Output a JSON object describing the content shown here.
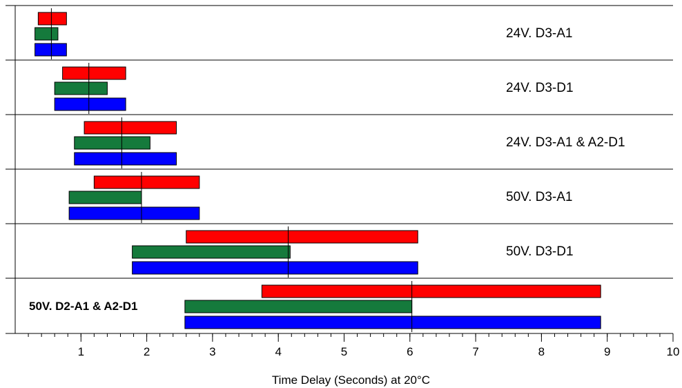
{
  "chart_data": {
    "type": "bar",
    "subtype": "floating-range",
    "xlabel": "Time Delay (Seconds) at 20°C",
    "xlim": [
      0,
      10
    ],
    "x_ticks": [
      1,
      2,
      3,
      4,
      5,
      6,
      7,
      8,
      9,
      10
    ],
    "x_minor_step": 0.2,
    "series_colors": [
      "#ff0000",
      "#157a3c",
      "#0000ff"
    ],
    "groups": [
      {
        "label": "24V. D3-A1",
        "label_bold": false,
        "marker": 0.55,
        "bars": [
          [
            0.35,
            0.78
          ],
          [
            0.3,
            0.65
          ],
          [
            0.3,
            0.78
          ]
        ]
      },
      {
        "label": "24V. D3-D1",
        "label_bold": false,
        "marker": 1.12,
        "bars": [
          [
            0.72,
            1.68
          ],
          [
            0.6,
            1.4
          ],
          [
            0.6,
            1.68
          ]
        ]
      },
      {
        "label": "24V. D3-A1 & A2-D1",
        "label_bold": false,
        "marker": 1.62,
        "bars": [
          [
            1.05,
            2.45
          ],
          [
            0.9,
            2.05
          ],
          [
            0.9,
            2.45
          ]
        ]
      },
      {
        "label": "50V. D3-A1",
        "label_bold": false,
        "marker": 1.92,
        "bars": [
          [
            1.2,
            2.8
          ],
          [
            0.82,
            1.92
          ],
          [
            0.82,
            2.8
          ]
        ]
      },
      {
        "label": "50V. D3-D1",
        "label_bold": false,
        "marker": 4.15,
        "bars": [
          [
            2.6,
            6.12
          ],
          [
            1.78,
            4.18
          ],
          [
            1.78,
            6.12
          ]
        ]
      },
      {
        "label": "50V. D2-A1 & A2-D1",
        "label_bold": true,
        "marker": 6.03,
        "bars": [
          [
            3.75,
            8.9
          ],
          [
            2.58,
            6.03
          ],
          [
            2.58,
            8.9
          ]
        ]
      }
    ]
  }
}
